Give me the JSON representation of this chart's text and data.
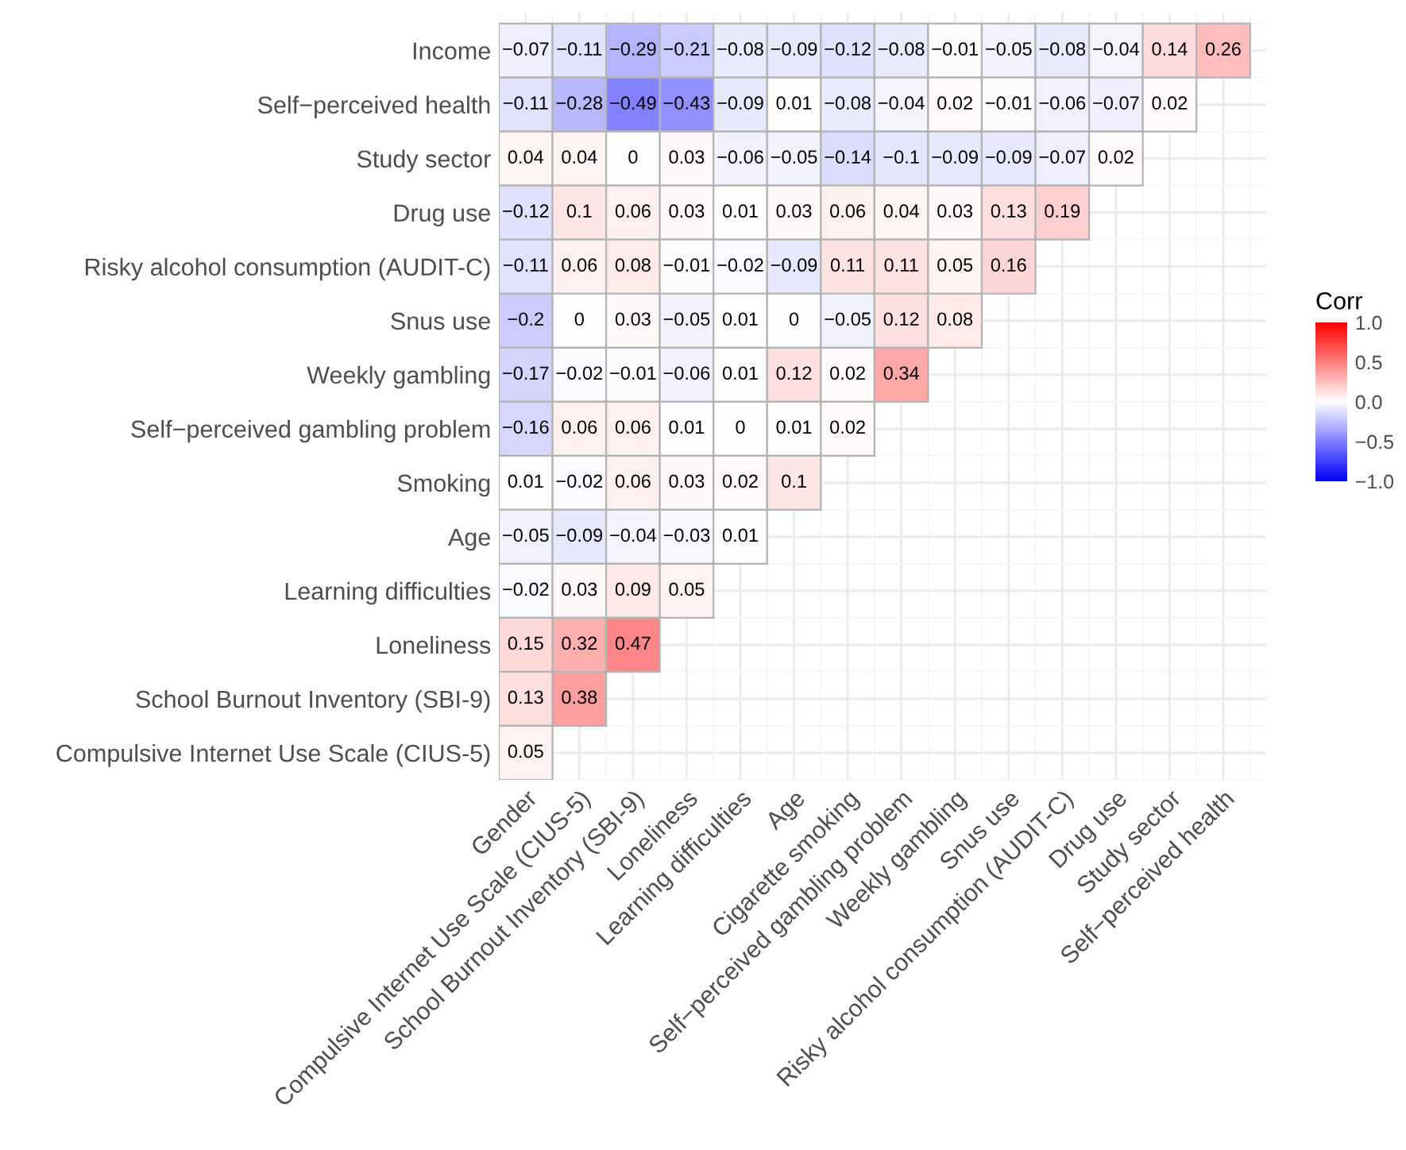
{
  "chart_data": {
    "type": "heatmap",
    "clabel": "Corr",
    "categories": [
      "Gender",
      "Compulsive Internet Use Scale (CIUS-5)",
      "School Burnout Inventory (SBI-9)",
      "Loneliness",
      "Learning difficulties",
      "Age",
      "Cigarette smoking",
      "Self−perceived gambling problem",
      "Weekly gambling",
      "Snus use",
      "Risky alcohol consumption (AUDIT-C)",
      "Drug use",
      "Study sector",
      "Self−perceived health"
    ],
    "y_categories": [
      "Income",
      "Self−perceived health",
      "Study sector",
      "Drug use",
      "Risky alcohol consumption (AUDIT-C)",
      "Snus use",
      "Weekly gambling",
      "Self−perceived gambling problem",
      "Smoking",
      "Age",
      "Learning difficulties",
      "Loneliness",
      "School Burnout Inventory (SBI-9)",
      "Compulsive Internet Use Scale (CIUS-5)"
    ],
    "cells": [
      [
        -0.07,
        -0.11,
        -0.29,
        -0.21,
        -0.08,
        -0.09,
        -0.12,
        -0.08,
        -0.01,
        -0.05,
        -0.08,
        -0.04,
        0.14,
        0.26
      ],
      [
        -0.11,
        -0.28,
        -0.49,
        -0.43,
        -0.09,
        0.01,
        -0.08,
        -0.04,
        0.02,
        -0.01,
        -0.06,
        -0.07,
        0.02,
        null
      ],
      [
        0.04,
        0.04,
        0,
        0.03,
        -0.06,
        -0.05,
        -0.14,
        -0.1,
        -0.09,
        -0.09,
        -0.07,
        0.02,
        null,
        null
      ],
      [
        -0.12,
        0.1,
        0.06,
        0.03,
        0.01,
        0.03,
        0.06,
        0.04,
        0.03,
        0.13,
        0.19,
        null,
        null,
        null
      ],
      [
        -0.11,
        0.06,
        0.08,
        -0.01,
        -0.02,
        -0.09,
        0.11,
        0.11,
        0.05,
        0.16,
        null,
        null,
        null,
        null
      ],
      [
        -0.2,
        0,
        0.03,
        -0.05,
        0.01,
        0,
        -0.05,
        0.12,
        0.08,
        null,
        null,
        null,
        null,
        null
      ],
      [
        -0.17,
        -0.02,
        -0.01,
        -0.06,
        0.01,
        0.12,
        0.02,
        0.34,
        null,
        null,
        null,
        null,
        null,
        null
      ],
      [
        -0.16,
        0.06,
        0.06,
        0.01,
        0,
        0.01,
        0.02,
        null,
        null,
        null,
        null,
        null,
        null,
        null
      ],
      [
        0.01,
        -0.02,
        0.06,
        0.03,
        0.02,
        0.1,
        null,
        null,
        null,
        null,
        null,
        null,
        null,
        null
      ],
      [
        -0.05,
        -0.09,
        -0.04,
        -0.03,
        0.01,
        null,
        null,
        null,
        null,
        null,
        null,
        null,
        null,
        null
      ],
      [
        -0.02,
        0.03,
        0.09,
        0.05,
        null,
        null,
        null,
        null,
        null,
        null,
        null,
        null,
        null,
        null
      ],
      [
        0.15,
        0.32,
        0.47,
        null,
        null,
        null,
        null,
        null,
        null,
        null,
        null,
        null,
        null,
        null
      ],
      [
        0.13,
        0.38,
        null,
        null,
        null,
        null,
        null,
        null,
        null,
        null,
        null,
        null,
        null,
        null
      ],
      [
        0.05,
        null,
        null,
        null,
        null,
        null,
        null,
        null,
        null,
        null,
        null,
        null,
        null,
        null
      ]
    ],
    "clim": [
      -1,
      1
    ],
    "cticks": [
      {
        "value": -1,
        "label": "−1.0"
      },
      {
        "value": -0.5,
        "label": "−0.5"
      },
      {
        "value": 0,
        "label": "0.0"
      },
      {
        "value": 0.5,
        "label": "0.5"
      },
      {
        "value": 1,
        "label": "1.0"
      }
    ],
    "data_labels": true,
    "grid": true
  }
}
